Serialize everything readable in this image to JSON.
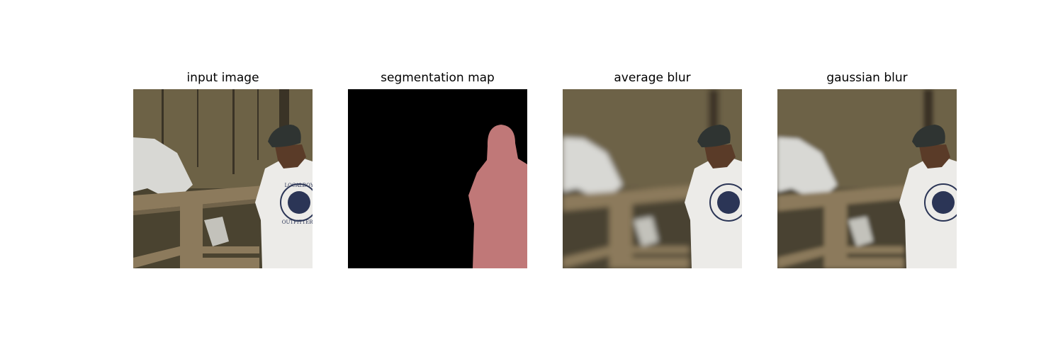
{
  "figure": {
    "panels": [
      {
        "title": "input image",
        "blur": 0
      },
      {
        "title": "segmentation map"
      },
      {
        "title": "average blur",
        "blur": 4
      },
      {
        "title": "gaussian blur",
        "blur": 3
      }
    ],
    "shirt_logo": {
      "line1": "LOCALBOY",
      "line2": "OUTFITTERS"
    },
    "colors": {
      "background": "#ffffff",
      "seg_background": "#000000",
      "seg_person": "#c07878",
      "forest_dark": "#4a4330",
      "forest_light": "#8a7b5a",
      "wood": "#8c7a5c",
      "shirt": "#ecebe8",
      "logo_navy": "#2b3556",
      "cap": "#2f3432",
      "hair": "#5a3b28",
      "water": "#d8d8d4"
    }
  }
}
